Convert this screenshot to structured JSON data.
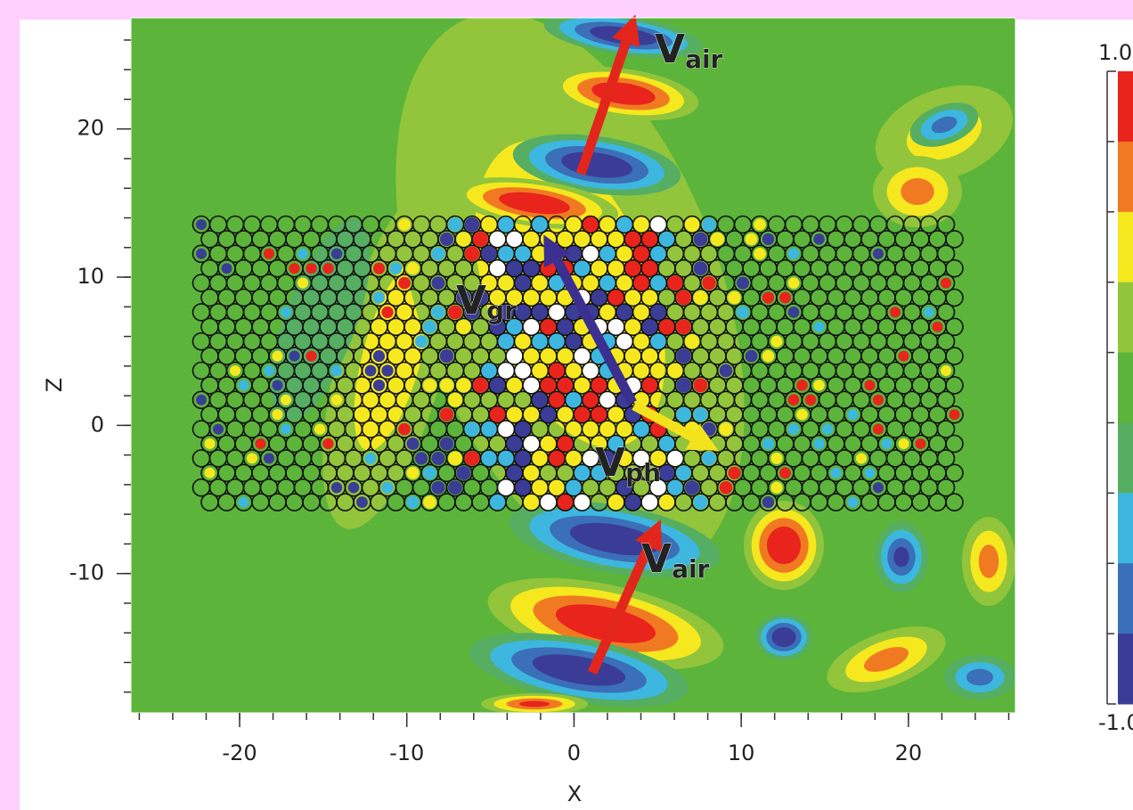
{
  "chart_data": {
    "type": "contour",
    "xlabel": "X",
    "ylabel": "Z",
    "xlim": [
      -26.5,
      26.4
    ],
    "ylim": [
      -19.4,
      27.5
    ],
    "xticks": [
      -20,
      -10,
      0,
      10,
      20
    ],
    "yticks": [
      -10,
      0,
      10,
      20
    ],
    "xminorticks": [
      -26,
      -24,
      -22,
      -20,
      -18,
      -16,
      -14,
      -12,
      -10,
      -8,
      -6,
      -4,
      -2,
      0,
      2,
      4,
      6,
      8,
      10,
      12,
      14,
      16,
      18,
      20,
      22,
      24,
      26
    ],
    "yminorticks": [
      -18,
      -16,
      -14,
      -12,
      -10,
      -8,
      -6,
      -4,
      -2,
      0,
      2,
      4,
      6,
      8,
      10,
      12,
      14,
      16,
      18,
      20,
      22,
      24,
      26
    ],
    "colorbar": {
      "lim": [
        -1,
        1
      ],
      "ticks": [
        {
          "value": 1,
          "label": "1.0"
        },
        {
          "value": -1,
          "label": "-1.0"
        }
      ],
      "colors": [
        "#e8241c",
        "#f07a22",
        "#f6e81f",
        "#92c53b",
        "#5cb43a",
        "#55ae62",
        "#3db7df",
        "#3b6fb7",
        "#3a3c96"
      ]
    },
    "annotations": [
      {
        "text": "V",
        "sub": "air",
        "color": "#d42a1e"
      },
      {
        "text": "V",
        "sub": "air",
        "color": "#d42a1e"
      },
      {
        "text": "V",
        "sub": "gr",
        "color": "#4a3d9a"
      },
      {
        "text": "V",
        "sub": "ph",
        "color": "#f2e022"
      }
    ]
  }
}
